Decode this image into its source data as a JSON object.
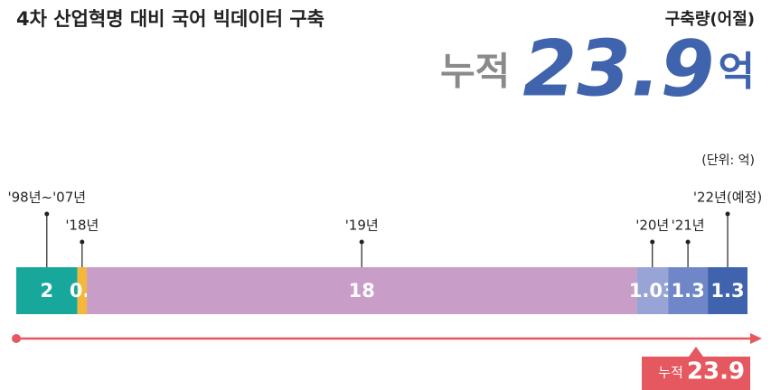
{
  "chart_data": {
    "type": "stacked_bar",
    "title": "4차 산업혁명 대비 국어 빅데이터 구축",
    "subtitle": "구축량(어절)",
    "total_prefix": "누적",
    "total": 23.9,
    "total_unit": "억",
    "unit_note": "(단위: 억)",
    "categories": [
      "'98년~'07년",
      "'18년",
      "'19년",
      "'20년",
      "'21년",
      "'22년(예정)"
    ],
    "values": [
      2,
      0.31,
      18,
      1.03,
      1.3,
      1.3
    ],
    "colors": [
      "#17a89b",
      "#f4b73a",
      "#c89dc7",
      "#98a4d5",
      "#6f86c8",
      "#3f63ad"
    ]
  }
}
